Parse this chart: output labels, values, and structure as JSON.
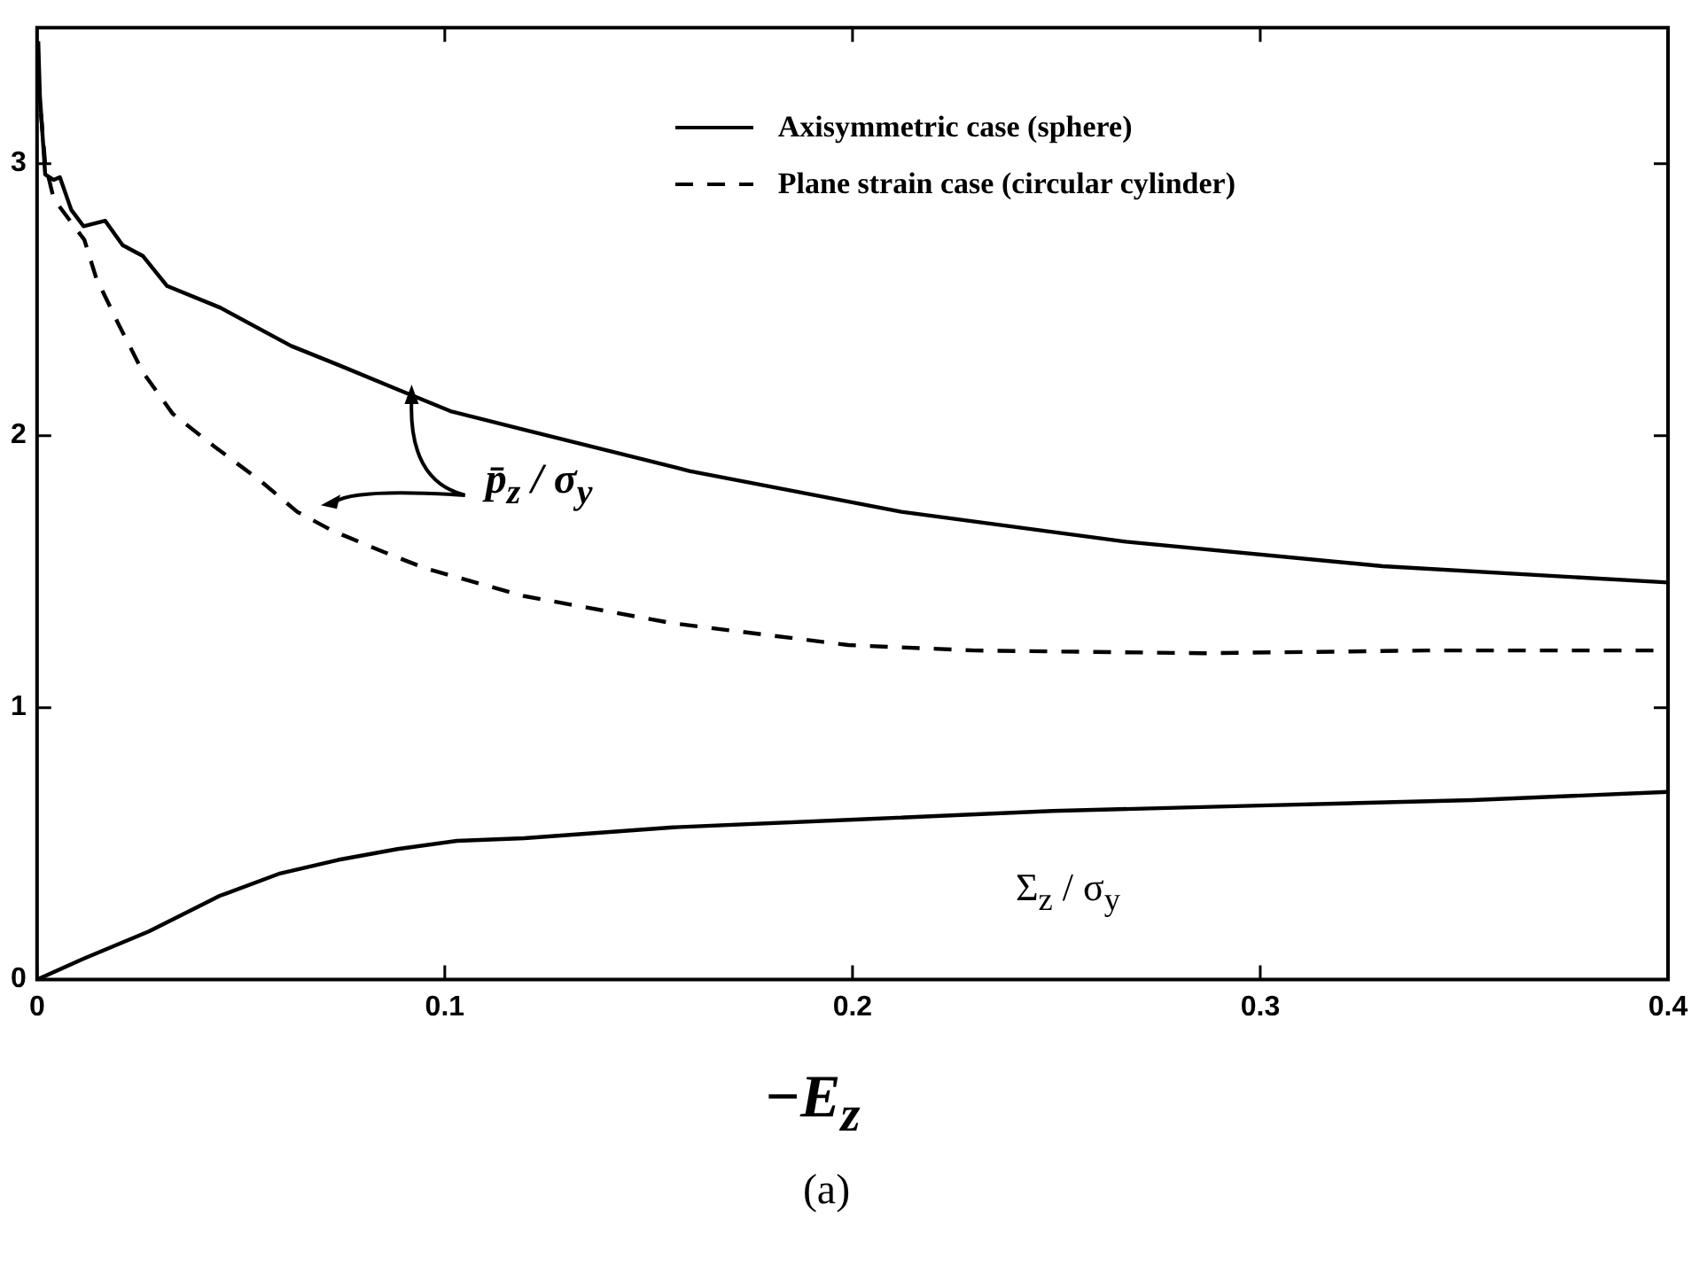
{
  "chart_data": {
    "type": "line",
    "xlabel": "−E$_{z}$",
    "xlim": [
      0,
      0.4
    ],
    "xticks": [
      0,
      0.1,
      0.2,
      0.3,
      0.4
    ],
    "ylim": [
      0,
      3.5
    ],
    "yticks": [
      0,
      1,
      2,
      3
    ],
    "legend": "top right",
    "marker": "none",
    "annotations": [
      "p̄$_{z}$ / σ$_{y}$",
      "Σ$_{z}$ / σ$_{y}$",
      "(a)"
    ],
    "series": [
      {
        "name": "Axisymmetric case (sphere)",
        "color": "#000000",
        "line_style": "solid",
        "x": [
          0.0003,
          0.0007,
          0.002,
          0.0041,
          0.0056,
          0.0084,
          0.0114,
          0.0167,
          0.021,
          0.026,
          0.0319,
          0.045,
          0.0623,
          0.0739,
          0.0884,
          0.1014,
          0.12,
          0.16,
          0.212,
          0.267,
          0.33,
          0.4
        ],
        "values": [
          3.45,
          3.25,
          2.96,
          2.94,
          2.95,
          2.83,
          2.77,
          2.79,
          2.7,
          2.66,
          2.55,
          2.47,
          2.33,
          2.26,
          2.17,
          2.09,
          2.02,
          1.87,
          1.72,
          1.61,
          1.52,
          1.46
        ]
      },
      {
        "name": "Plane strain case (circular cylinder)",
        "color": "#000000",
        "line_style": "dashed",
        "x": [
          0.0003,
          0.002,
          0.0041,
          0.0116,
          0.0145,
          0.0203,
          0.0261,
          0.0333,
          0.0435,
          0.0551,
          0.0638,
          0.0725,
          0.087,
          0.0957,
          0.1195,
          0.156,
          0.199,
          0.23,
          0.286,
          0.341,
          0.4
        ],
        "values": [
          3.3,
          3.0,
          2.87,
          2.72,
          2.58,
          2.4,
          2.23,
          2.08,
          1.96,
          1.83,
          1.72,
          1.65,
          1.56,
          1.51,
          1.41,
          1.31,
          1.23,
          1.21,
          1.2,
          1.21,
          1.21
        ]
      },
      {
        "color": "#000000",
        "line_style": "solid",
        "x": [
          0,
          0.0114,
          0.0274,
          0.0448,
          0.0593,
          0.0738,
          0.0884,
          0.103,
          0.1195,
          0.156,
          0.203,
          0.249,
          0.3,
          0.352,
          0.4
        ],
        "values": [
          0,
          0.077,
          0.177,
          0.308,
          0.389,
          0.44,
          0.48,
          0.51,
          0.52,
          0.56,
          0.59,
          0.62,
          0.64,
          0.66,
          0.69
        ]
      }
    ]
  }
}
